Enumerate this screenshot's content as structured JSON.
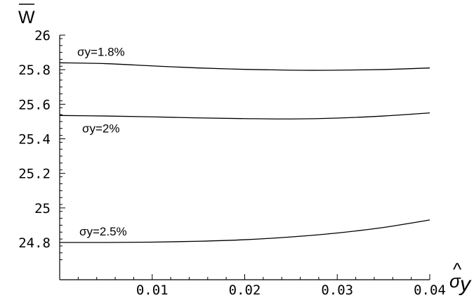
{
  "chart_data": {
    "type": "line",
    "title": "",
    "ylabel_symbol": "W",
    "ylabel_overbar": true,
    "xlabel_symbol": "σ",
    "xlabel_hat": "^",
    "xlabel_subscript": "y",
    "xlim": [
      0,
      0.04
    ],
    "ylim": [
      24.7,
      26.0
    ],
    "x_ticks": [
      0.01,
      0.02,
      0.03,
      0.04
    ],
    "x_tick_labels": [
      "0.01",
      "0.02",
      "0.03",
      "0.04"
    ],
    "y_ticks": [
      24.8,
      25.0,
      25.2,
      25.4,
      25.6,
      25.8,
      26.0
    ],
    "y_tick_labels": [
      "24.8",
      "25",
      "25.2",
      "25.4",
      "25.6",
      "25.8",
      "26"
    ],
    "x_minor_step": 0.002,
    "y_minor_step": 0.04,
    "grid": false,
    "series": [
      {
        "name": "σy=1.8%",
        "x": [
          0,
          0.005,
          0.01,
          0.015,
          0.02,
          0.025,
          0.03,
          0.035,
          0.04
        ],
        "values": [
          25.84,
          25.835,
          25.822,
          25.81,
          25.802,
          25.797,
          25.797,
          25.801,
          25.81
        ]
      },
      {
        "name": "σy=2%",
        "x": [
          0,
          0.005,
          0.01,
          0.015,
          0.02,
          0.025,
          0.03,
          0.035,
          0.04
        ],
        "values": [
          25.535,
          25.532,
          25.527,
          25.521,
          25.517,
          25.515,
          25.52,
          25.532,
          25.55
        ]
      },
      {
        "name": "σy=2.5%",
        "x": [
          0,
          0.005,
          0.01,
          0.015,
          0.02,
          0.025,
          0.03,
          0.035,
          0.04
        ],
        "values": [
          24.8,
          24.8,
          24.802,
          24.807,
          24.816,
          24.832,
          24.855,
          24.887,
          24.93
        ]
      }
    ]
  }
}
